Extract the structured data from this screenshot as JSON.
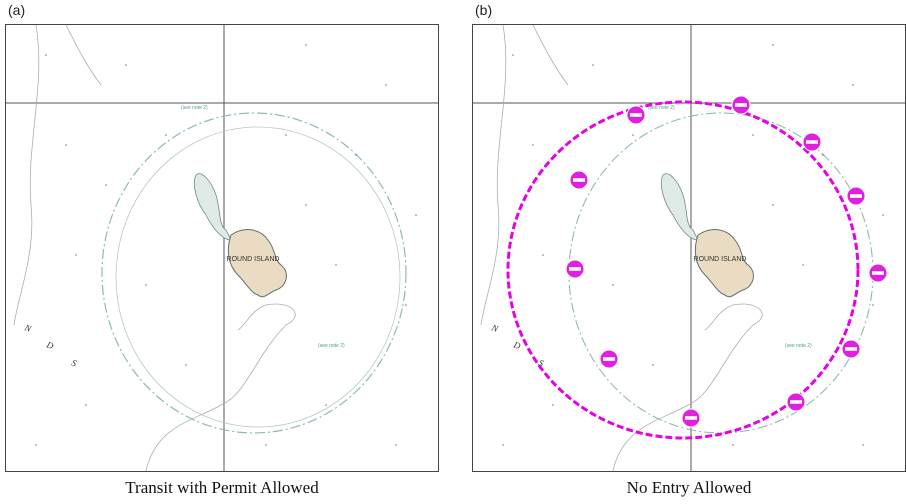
{
  "panels": [
    {
      "label": "(a)",
      "caption": "Transit with Permit Allowed",
      "island_name": "ROUND ISLAND",
      "note_labels": [
        "(see note 2)",
        "(see note 2)"
      ],
      "restriction_colors": {
        "zone": "#8fb9b3"
      }
    },
    {
      "label": "(b)",
      "caption": "No Entry Allowed",
      "island_name": "ROUND ISLAND",
      "note_labels": [
        "(see note 2)",
        "(see note 2)"
      ],
      "restriction_colors": {
        "zone": "#e600e6",
        "no_entry_icon": "#e020e0"
      }
    }
  ],
  "map_letters": [
    "N",
    "D",
    "S"
  ],
  "colors": {
    "land": "#e9dcc3",
    "shore_line": "#5f6f6a",
    "depth_contour": "#9aa0a0",
    "graticule": "#555555"
  },
  "icons": {
    "no_entry": "no-entry-icon"
  }
}
